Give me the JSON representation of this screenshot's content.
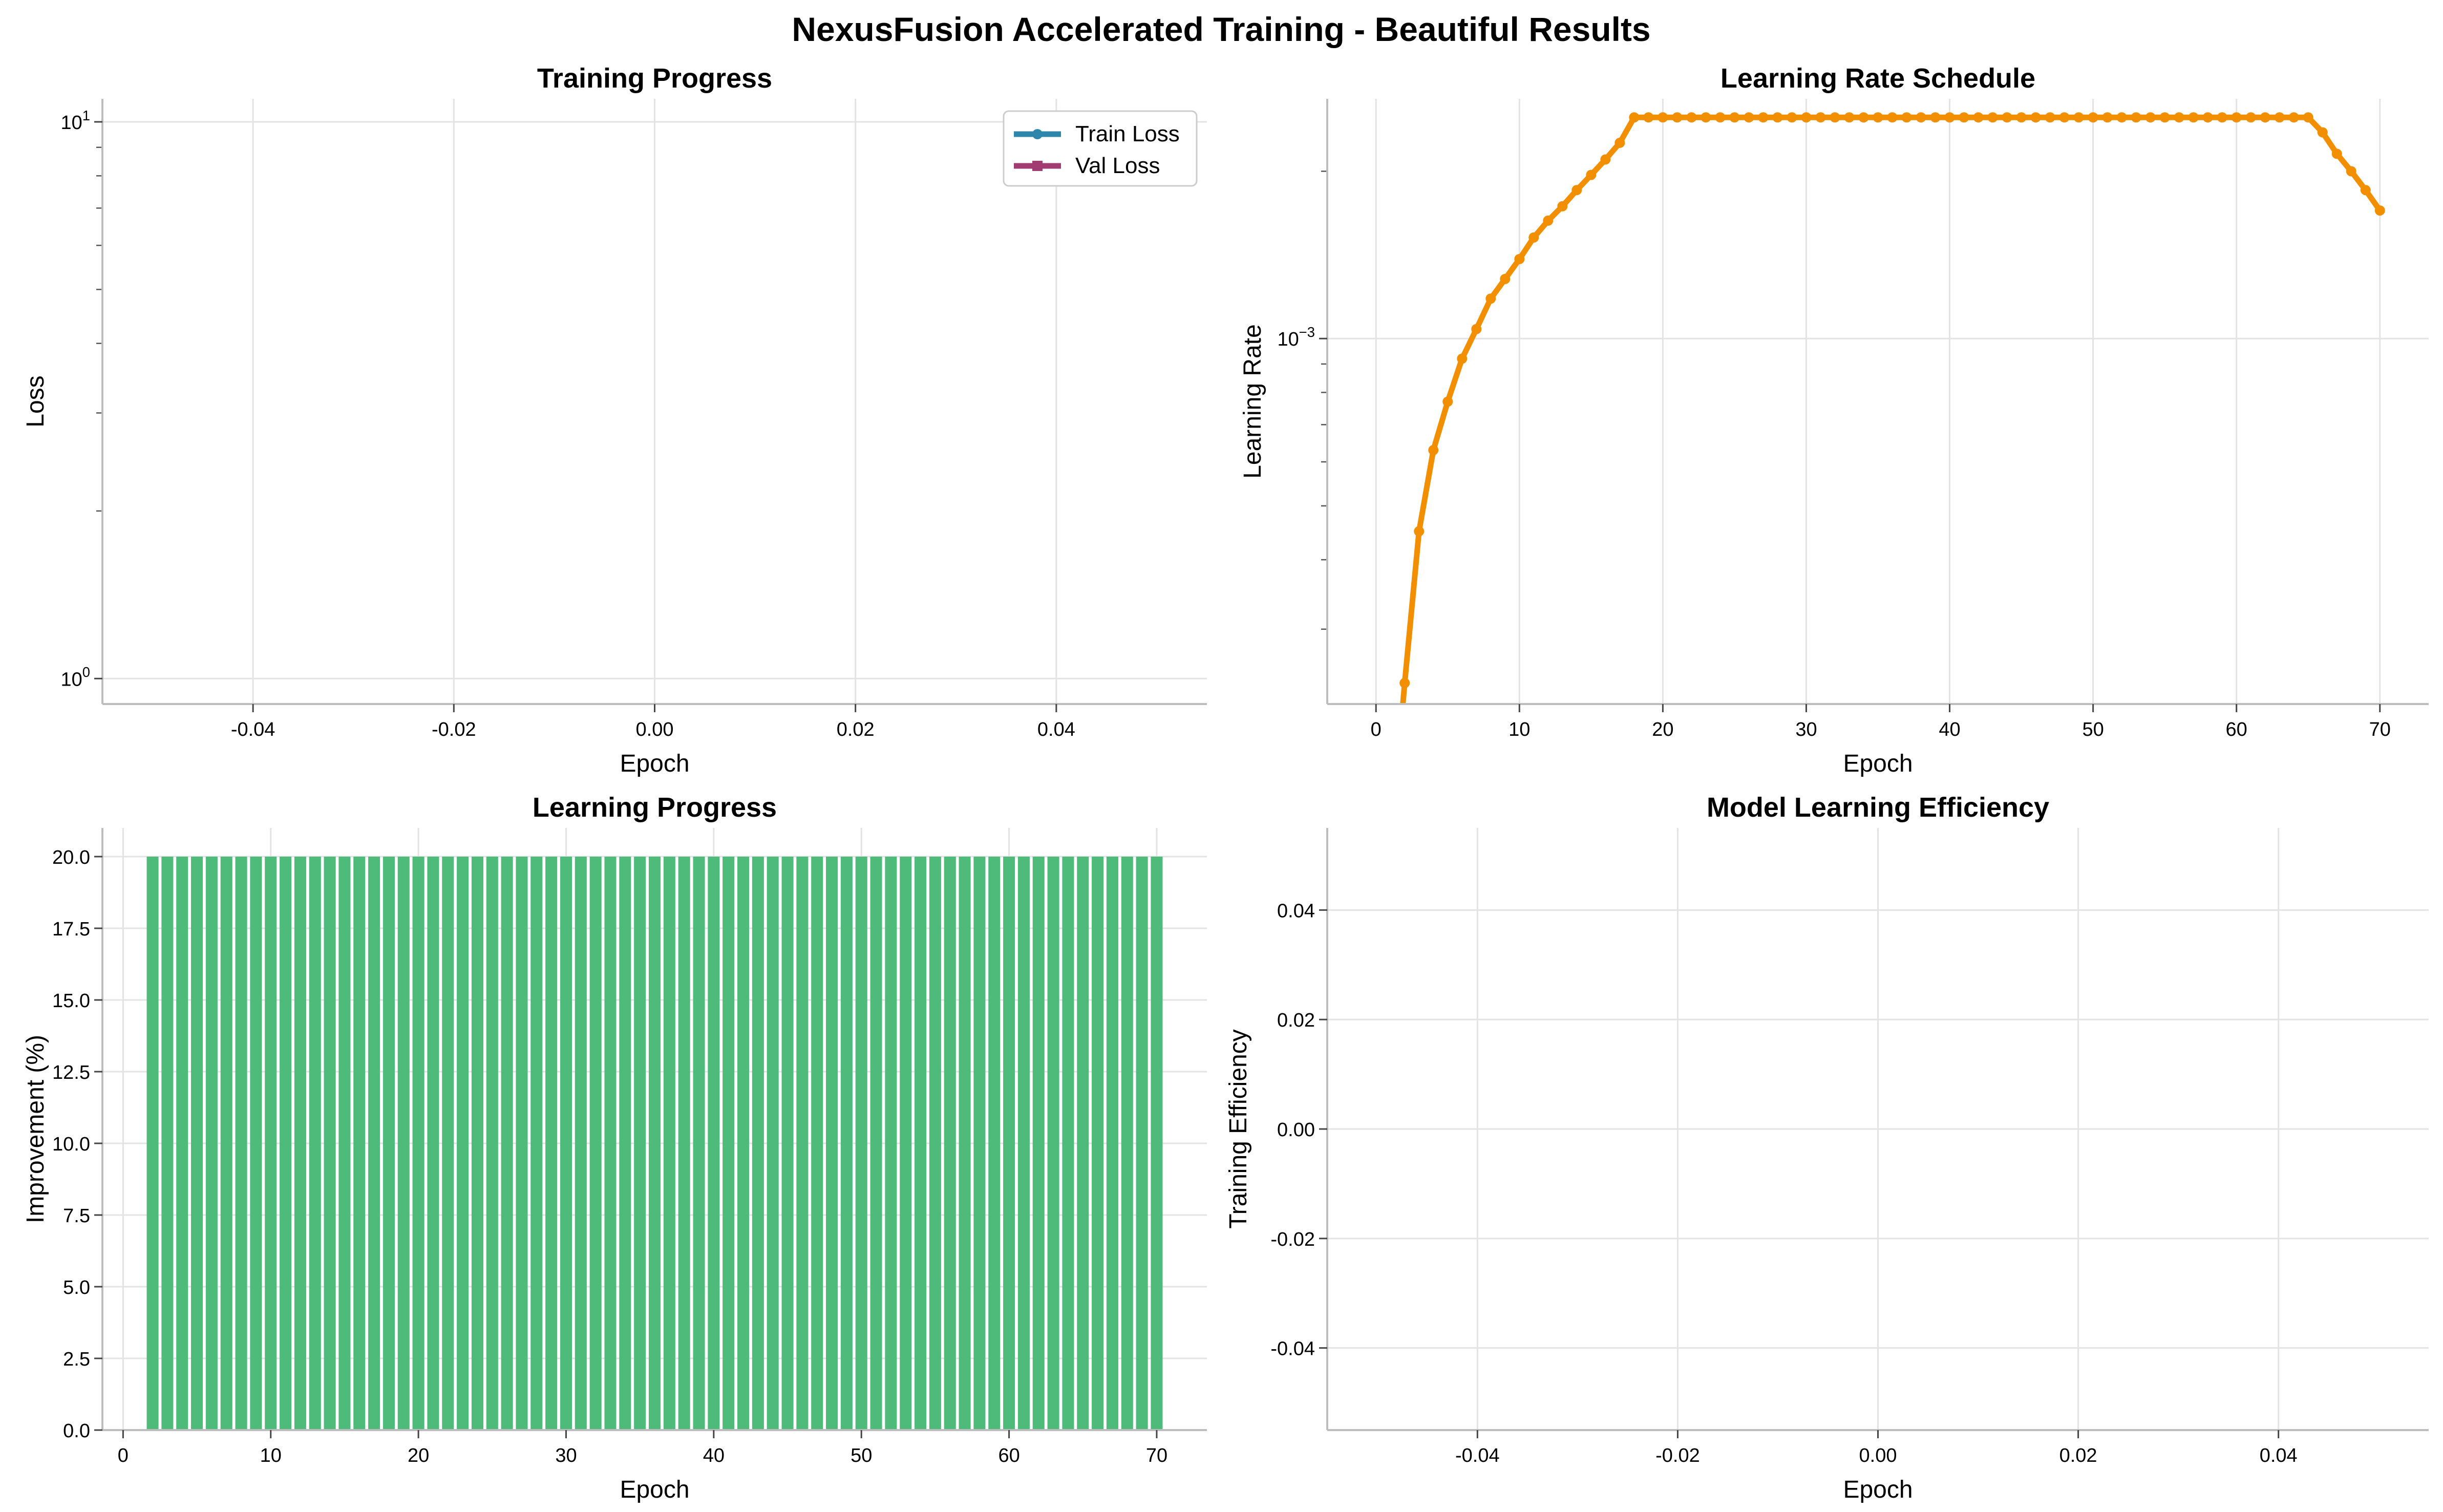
{
  "suptitle": "NexusFusion Accelerated Training - Beautiful Results",
  "colors": {
    "train": "#2e86ab",
    "val": "#a23b72",
    "lr": "#f18f01",
    "bars": "#4fbb7b",
    "grid": "#e3e3e3",
    "axis": "#bdbdbd"
  },
  "chart_data": [
    {
      "id": "training-progress",
      "type": "line",
      "title": "Training Progress",
      "xlabel": "Epoch",
      "ylabel": "Loss",
      "yscale": "log",
      "xlim": [
        -0.055,
        0.055
      ],
      "ylim": [
        0.9,
        11
      ],
      "xticks": [
        -0.04,
        -0.02,
        0.0,
        0.02,
        0.04
      ],
      "xtick_labels": [
        "-0.04",
        "-0.02",
        "0.00",
        "0.02",
        "0.04"
      ],
      "yticks": [
        1,
        10
      ],
      "ytick_labels": [
        "10^0",
        "10^1"
      ],
      "grid": true,
      "legend": "top-right",
      "series": [
        {
          "name": "Train Loss",
          "marker": "circle",
          "x": [],
          "y": []
        },
        {
          "name": "Val Loss",
          "marker": "square",
          "x": [],
          "y": []
        }
      ]
    },
    {
      "id": "learning-rate-schedule",
      "type": "line",
      "title": "Learning Rate Schedule",
      "xlabel": "Epoch",
      "ylabel": "Learning Rate",
      "yscale": "log",
      "xlim": [
        -3.4,
        73.4
      ],
      "ylim": [
        0.00022,
        0.0027
      ],
      "xticks": [
        0,
        10,
        20,
        30,
        40,
        50,
        60,
        70
      ],
      "xtick_labels": [
        "0",
        "10",
        "20",
        "30",
        "40",
        "50",
        "60",
        "70"
      ],
      "yticks": [
        0.001
      ],
      "ytick_labels": [
        "10^-3"
      ],
      "grid": true,
      "series": [
        {
          "name": "",
          "x": [
            1,
            2,
            3,
            4,
            5,
            6,
            7,
            8,
            9,
            10,
            11,
            12,
            13,
            14,
            15,
            16,
            17,
            18,
            19,
            20,
            21,
            22,
            23,
            24,
            25,
            26,
            27,
            28,
            29,
            30,
            31,
            32,
            33,
            34,
            35,
            36,
            37,
            38,
            39,
            40,
            41,
            42,
            43,
            44,
            45,
            46,
            47,
            48,
            49,
            50,
            51,
            52,
            53,
            54,
            55,
            56,
            57,
            58,
            59,
            60,
            61,
            62,
            63,
            64,
            65,
            66,
            67,
            68,
            69,
            70
          ],
          "y": [
            0.00012,
            0.00024,
            0.00045,
            0.00063,
            0.00077,
            0.00092,
            0.00104,
            0.00118,
            0.00128,
            0.00139,
            0.00152,
            0.00163,
            0.00173,
            0.00185,
            0.00197,
            0.0021,
            0.00225,
            0.0025,
            0.0025,
            0.0025,
            0.0025,
            0.0025,
            0.0025,
            0.0025,
            0.0025,
            0.0025,
            0.0025,
            0.0025,
            0.0025,
            0.0025,
            0.0025,
            0.0025,
            0.0025,
            0.0025,
            0.0025,
            0.0025,
            0.0025,
            0.0025,
            0.0025,
            0.0025,
            0.0025,
            0.0025,
            0.0025,
            0.0025,
            0.0025,
            0.0025,
            0.0025,
            0.0025,
            0.0025,
            0.0025,
            0.0025,
            0.0025,
            0.0025,
            0.0025,
            0.0025,
            0.0025,
            0.0025,
            0.0025,
            0.0025,
            0.0025,
            0.0025,
            0.0025,
            0.0025,
            0.0025,
            0.0025,
            0.00235,
            0.00215,
            0.002,
            0.00185,
            0.0017
          ]
        }
      ]
    },
    {
      "id": "learning-progress",
      "type": "bar",
      "title": "Learning Progress",
      "xlabel": "Epoch",
      "ylabel": "Improvement (%)",
      "xlim": [
        -1.4,
        73.4
      ],
      "ylim": [
        0,
        21
      ],
      "xticks": [
        0,
        10,
        20,
        30,
        40,
        50,
        60,
        70
      ],
      "xtick_labels": [
        "0",
        "10",
        "20",
        "30",
        "40",
        "50",
        "60",
        "70"
      ],
      "yticks": [
        0,
        2.5,
        5,
        7.5,
        10,
        12.5,
        15,
        17.5,
        20
      ],
      "ytick_labels": [
        "0.0",
        "2.5",
        "5.0",
        "7.5",
        "10.0",
        "12.5",
        "15.0",
        "17.5",
        "20.0"
      ],
      "grid": true,
      "x": [
        2,
        3,
        4,
        5,
        6,
        7,
        8,
        9,
        10,
        11,
        12,
        13,
        14,
        15,
        16,
        17,
        18,
        19,
        20,
        21,
        22,
        23,
        24,
        25,
        26,
        27,
        28,
        29,
        30,
        31,
        32,
        33,
        34,
        35,
        36,
        37,
        38,
        39,
        40,
        41,
        42,
        43,
        44,
        45,
        46,
        47,
        48,
        49,
        50,
        51,
        52,
        53,
        54,
        55,
        56,
        57,
        58,
        59,
        60,
        61,
        62,
        63,
        64,
        65,
        66,
        67,
        68,
        69,
        70
      ],
      "values": [
        20,
        20,
        20,
        20,
        20,
        20,
        20,
        20,
        20,
        20,
        20,
        20,
        20,
        20,
        20,
        20,
        20,
        20,
        20,
        20,
        20,
        20,
        20,
        20,
        20,
        20,
        20,
        20,
        20,
        20,
        20,
        20,
        20,
        20,
        20,
        20,
        20,
        20,
        20,
        20,
        20,
        20,
        20,
        20,
        20,
        20,
        20,
        20,
        20,
        20,
        20,
        20,
        20,
        20,
        20,
        20,
        20,
        20,
        20,
        20,
        20,
        20,
        20,
        20,
        20,
        20,
        20,
        20,
        20
      ]
    },
    {
      "id": "model-learning-efficiency",
      "type": "scatter",
      "title": "Model Learning Efficiency",
      "xlabel": "Epoch",
      "ylabel": "Training Efficiency",
      "xlim": [
        -0.055,
        0.055
      ],
      "ylim": [
        -0.055,
        0.055
      ],
      "xticks": [
        -0.04,
        -0.02,
        0.0,
        0.02,
        0.04
      ],
      "xtick_labels": [
        "-0.04",
        "-0.02",
        "0.00",
        "0.02",
        "0.04"
      ],
      "yticks": [
        -0.04,
        -0.02,
        0.0,
        0.02,
        0.04
      ],
      "ytick_labels": [
        "-0.04",
        "-0.02",
        "0.00",
        "0.02",
        "0.04"
      ],
      "grid": true,
      "series": [
        {
          "name": "",
          "x": [],
          "y": []
        }
      ]
    }
  ]
}
